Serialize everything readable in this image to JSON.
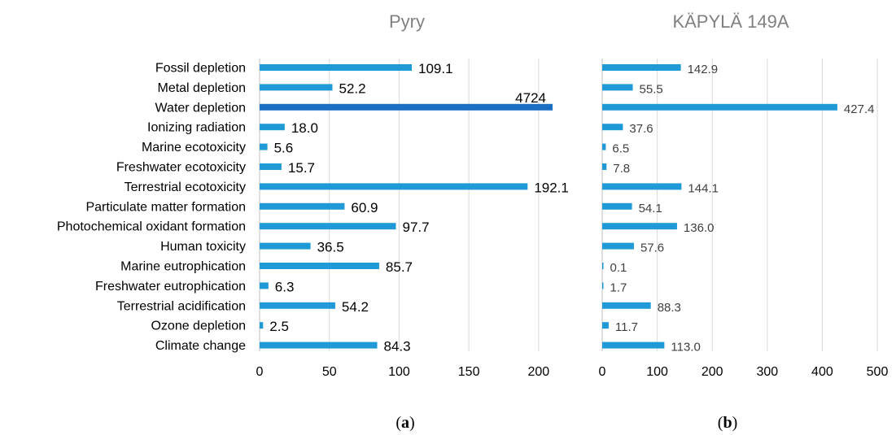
{
  "chart_data": [
    {
      "type": "bar",
      "orientation": "horizontal",
      "title": "Pyry",
      "caption_open": "(",
      "caption_letter": "a",
      "caption_close": ")",
      "categories": [
        "Fossil depletion",
        "Metal depletion",
        "Water depletion",
        "Ionizing radiation",
        "Marine ecotoxicity",
        "Freshwater ecotoxicity",
        "Terrestrial ecotoxicity",
        "Particulate matter formation",
        "Photochemical oxidant formation",
        "Human toxicity",
        "Marine eutrophication",
        "Freshwater eutrophication",
        "Terrestrial acidification",
        "Ozone depletion",
        "Climate change"
      ],
      "values": [
        109.1,
        52.2,
        4724,
        18.0,
        5.6,
        15.7,
        192.1,
        60.9,
        97.7,
        36.5,
        85.7,
        6.3,
        54.2,
        2.5,
        84.3
      ],
      "value_labels": [
        "109.1",
        "52.2",
        "4724",
        "18.0",
        "5.6",
        "15.7",
        "192.1",
        "60.9",
        "97.7",
        "36.5",
        "85.7",
        "6.3",
        "54.2",
        "2.5",
        "84.3"
      ],
      "xlim": [
        0,
        210
      ],
      "xticks": [
        0,
        50,
        100,
        150,
        200
      ],
      "xtick_labels": [
        "0",
        "50",
        "100",
        "150",
        "200"
      ],
      "grid": true,
      "bar_color": "#1f9ad6",
      "highlight_color": "#1b6ec2",
      "truncated_category": "Water depletion"
    },
    {
      "type": "bar",
      "orientation": "horizontal",
      "title": "KÄPYLÄ 149A",
      "caption_open": "(",
      "caption_letter": "b",
      "caption_close": ")",
      "categories": [
        "Fossil depletion",
        "Metal depletion",
        "Water depletion",
        "Ionizing radiation",
        "Marine ecotoxicity",
        "Freshwater ecotoxicity",
        "Terrestrial ecotoxicity",
        "Particulate matter formation",
        "Photochemical oxidant formation",
        "Human toxicity",
        "Marine eutrophication",
        "Freshwater eutrophication",
        "Terrestrial acidification",
        "Ozone depletion",
        "Climate change"
      ],
      "values": [
        142.9,
        55.5,
        427.4,
        37.6,
        6.5,
        7.8,
        144.1,
        54.1,
        136.0,
        57.6,
        0.1,
        1.7,
        88.3,
        11.7,
        113.0
      ],
      "value_labels": [
        "142.9",
        "55.5",
        "427.4",
        "37.6",
        "6.5",
        "7.8",
        "144.1",
        "54.1",
        "136.0",
        "57.6",
        "0.1",
        "1.7",
        "88.3",
        "11.7",
        "113.0"
      ],
      "xlim": [
        0,
        500
      ],
      "xticks": [
        0,
        100,
        200,
        300,
        400,
        500
      ],
      "xtick_labels": [
        "0",
        "100",
        "200",
        "300",
        "400",
        "500"
      ],
      "grid": true,
      "bar_color": "#1f9ad6"
    }
  ]
}
